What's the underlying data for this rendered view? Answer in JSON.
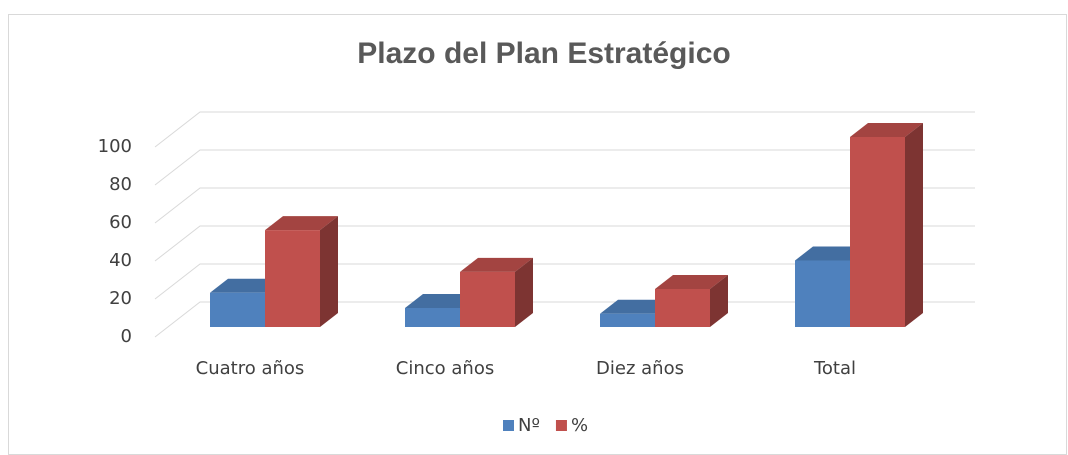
{
  "chart_data": {
    "type": "bar3d",
    "title": "Plazo del Plan Estratégico",
    "categories": [
      "Cuatro años",
      "Cinco años",
      "Diez años",
      "Total"
    ],
    "series": [
      {
        "name": "Nº",
        "color": "#4f81bd",
        "values": [
          18,
          10,
          7,
          35
        ]
      },
      {
        "name": "%",
        "color": "#c0504d",
        "values": [
          51,
          29,
          20,
          100
        ]
      }
    ],
    "ylim": [
      0,
      100
    ],
    "yticks": [
      0,
      20,
      40,
      60,
      80,
      100
    ],
    "grid": true,
    "legend": "bottom"
  }
}
